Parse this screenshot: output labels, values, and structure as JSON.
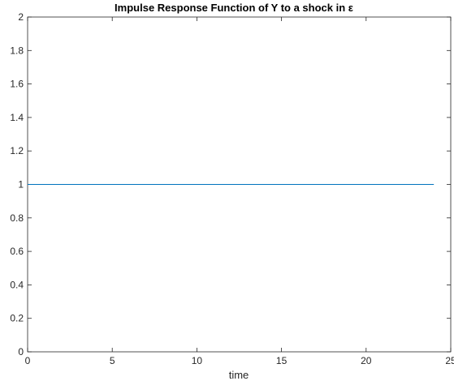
{
  "chart_data": {
    "type": "line",
    "title": "Impulse Response Function of Y to a shock in ε",
    "xlabel": "time",
    "ylabel": "",
    "xlim": [
      0,
      25
    ],
    "ylim": [
      0,
      2
    ],
    "xticks": [
      0,
      5,
      10,
      15,
      20,
      25
    ],
    "yticks": [
      0,
      0.2,
      0.4,
      0.6,
      0.8,
      1,
      1.2,
      1.4,
      1.6,
      1.8,
      2
    ],
    "xtick_labels": [
      "0",
      "5",
      "10",
      "15",
      "20",
      "25"
    ],
    "ytick_labels": [
      "0",
      "0.2",
      "0.4",
      "0.6",
      "0.8",
      "1",
      "1.2",
      "1.4",
      "1.6",
      "1.8",
      "2"
    ],
    "grid": false,
    "series": [
      {
        "x": [
          0,
          24
        ],
        "y": [
          1,
          1
        ],
        "color": "#0072BD"
      }
    ]
  }
}
